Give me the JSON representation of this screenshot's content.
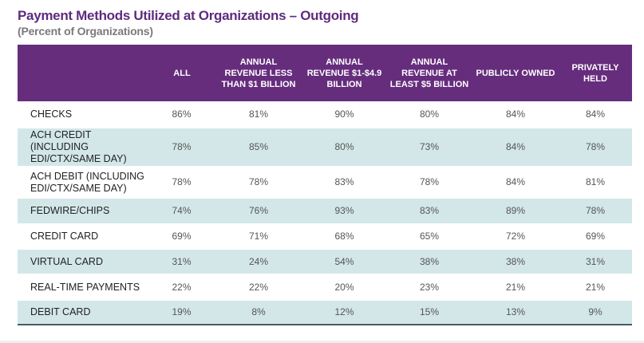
{
  "title": "Payment Methods Utilized at Organizations – Outgoing",
  "subtitle": "(Percent of Organizations)",
  "colors": {
    "header": "#662d7d",
    "title": "#5e2b7e",
    "stripe": "#d3e7e8"
  },
  "table": {
    "columns": [
      "",
      "ALL",
      "ANNUAL REVENUE LESS THAN $1 BILLION",
      "ANNUAL REVENUE $1-$4.9 BILLION",
      "ANNUAL REVENUE AT LEAST $5 BILLION",
      "PUBLICLY OWNED",
      "PRIVATELY HELD"
    ],
    "rows": [
      {
        "label": "CHECKS",
        "values": [
          "86%",
          "81%",
          "90%",
          "80%",
          "84%",
          "84%"
        ]
      },
      {
        "label": "ACH CREDIT (INCLUDING EDI/CTX/SAME DAY)",
        "values": [
          "78%",
          "85%",
          "80%",
          "73%",
          "84%",
          "78%"
        ]
      },
      {
        "label": "ACH DEBIT (INCLUDING EDI/CTX/SAME DAY)",
        "values": [
          "78%",
          "78%",
          "83%",
          "78%",
          "84%",
          "81%"
        ]
      },
      {
        "label": "FEDWIRE/CHIPS",
        "values": [
          "74%",
          "76%",
          "93%",
          "83%",
          "89%",
          "78%"
        ]
      },
      {
        "label": "CREDIT CARD",
        "values": [
          "69%",
          "71%",
          "68%",
          "65%",
          "72%",
          "69%"
        ]
      },
      {
        "label": "VIRTUAL CARD",
        "values": [
          "31%",
          "24%",
          "54%",
          "38%",
          "38%",
          "31%"
        ]
      },
      {
        "label": "REAL-TIME PAYMENTS",
        "values": [
          "22%",
          "22%",
          "20%",
          "23%",
          "21%",
          "21%"
        ]
      },
      {
        "label": "DEBIT CARD",
        "values": [
          "19%",
          "8%",
          "12%",
          "15%",
          "13%",
          "9%"
        ]
      }
    ]
  }
}
